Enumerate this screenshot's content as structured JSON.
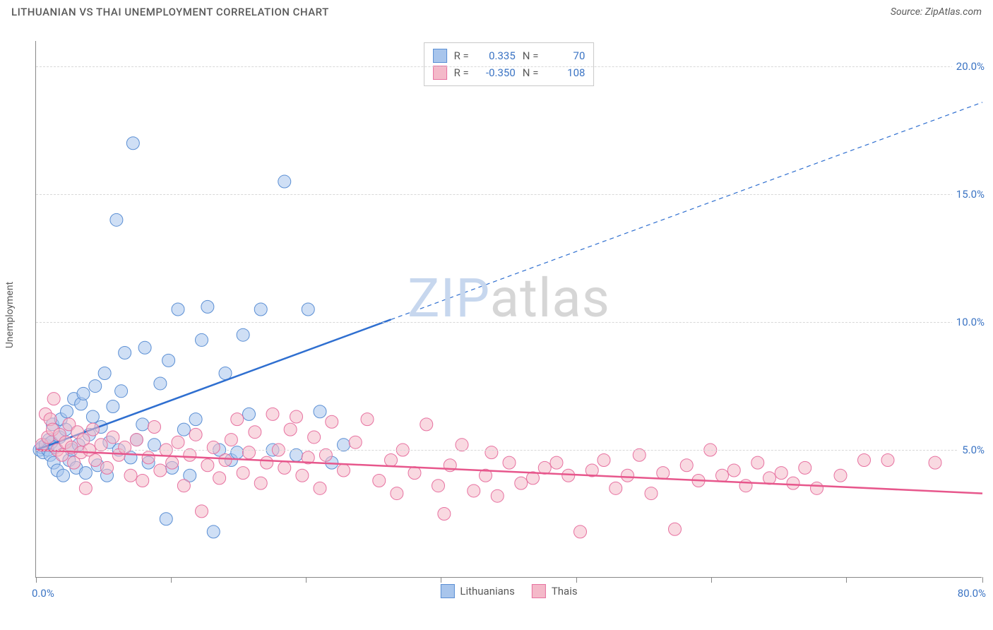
{
  "header": {
    "title": "LITHUANIAN VS THAI UNEMPLOYMENT CORRELATION CHART",
    "source": "Source: ZipAtlas.com"
  },
  "watermark": {
    "part1": "ZIP",
    "part2": "atlas"
  },
  "chart": {
    "type": "scatter",
    "xlabel": "",
    "ylabel": "Unemployment",
    "xlim": [
      0,
      80
    ],
    "ylim": [
      0,
      21
    ],
    "xtick_positions": [
      0,
      11.4,
      22.8,
      34.2,
      45.7,
      57.1,
      68.5,
      80
    ],
    "xtick_labels": {
      "min": "0.0%",
      "max": "80.0%"
    },
    "ytick_positions": [
      5,
      10,
      15,
      20
    ],
    "ytick_labels": [
      "5.0%",
      "10.0%",
      "15.0%",
      "20.0%"
    ],
    "grid_color": "#d8d8d8",
    "axis_color": "#888888",
    "background_color": "#ffffff",
    "marker_radius": 9,
    "marker_opacity": 0.55,
    "series": [
      {
        "name": "Lithuanians",
        "color_fill": "#a8c5ec",
        "color_stroke": "#5b8fd4",
        "R": "0.335",
        "N": "70",
        "trend": {
          "color": "#2f6fd0",
          "width": 2.5,
          "solid_range": [
            0,
            30
          ],
          "dashed_range": [
            30,
            80
          ],
          "y_start": 5.0,
          "y_at_30": 10.1,
          "y_at_80": 18.6
        },
        "points": [
          [
            0.3,
            5.0
          ],
          [
            0.5,
            5.1
          ],
          [
            0.6,
            4.9
          ],
          [
            0.8,
            5.2
          ],
          [
            1.0,
            5.0
          ],
          [
            1.1,
            5.4
          ],
          [
            1.2,
            4.8
          ],
          [
            1.3,
            5.3
          ],
          [
            1.4,
            6.0
          ],
          [
            1.5,
            4.5
          ],
          [
            1.6,
            5.1
          ],
          [
            1.8,
            4.2
          ],
          [
            2.0,
            5.5
          ],
          [
            2.1,
            6.2
          ],
          [
            2.3,
            4.0
          ],
          [
            2.5,
            5.8
          ],
          [
            2.6,
            6.5
          ],
          [
            2.8,
            4.6
          ],
          [
            3.0,
            5.0
          ],
          [
            3.2,
            7.0
          ],
          [
            3.4,
            4.3
          ],
          [
            3.6,
            5.2
          ],
          [
            3.8,
            6.8
          ],
          [
            4.0,
            7.2
          ],
          [
            4.2,
            4.1
          ],
          [
            4.5,
            5.6
          ],
          [
            4.8,
            6.3
          ],
          [
            5.0,
            7.5
          ],
          [
            5.2,
            4.4
          ],
          [
            5.5,
            5.9
          ],
          [
            5.8,
            8.0
          ],
          [
            6.0,
            4.0
          ],
          [
            6.2,
            5.3
          ],
          [
            6.5,
            6.7
          ],
          [
            6.8,
            14.0
          ],
          [
            7.0,
            5.0
          ],
          [
            7.2,
            7.3
          ],
          [
            7.5,
            8.8
          ],
          [
            8.0,
            4.7
          ],
          [
            8.2,
            17.0
          ],
          [
            8.5,
            5.4
          ],
          [
            9.0,
            6.0
          ],
          [
            9.2,
            9.0
          ],
          [
            9.5,
            4.5
          ],
          [
            10.0,
            5.2
          ],
          [
            10.5,
            7.6
          ],
          [
            11.0,
            2.3
          ],
          [
            11.2,
            8.5
          ],
          [
            11.5,
            4.3
          ],
          [
            12.0,
            10.5
          ],
          [
            12.5,
            5.8
          ],
          [
            13.0,
            4.0
          ],
          [
            13.5,
            6.2
          ],
          [
            14.0,
            9.3
          ],
          [
            14.5,
            10.6
          ],
          [
            15.0,
            1.8
          ],
          [
            15.5,
            5.0
          ],
          [
            16.0,
            8.0
          ],
          [
            16.5,
            4.6
          ],
          [
            17.0,
            4.9
          ],
          [
            17.5,
            9.5
          ],
          [
            18.0,
            6.4
          ],
          [
            19.0,
            10.5
          ],
          [
            20.0,
            5.0
          ],
          [
            21.0,
            15.5
          ],
          [
            22.0,
            4.8
          ],
          [
            23.0,
            10.5
          ],
          [
            24.0,
            6.5
          ],
          [
            25.0,
            4.5
          ],
          [
            26.0,
            5.2
          ]
        ]
      },
      {
        "name": "Thais",
        "color_fill": "#f4b9c9",
        "color_stroke": "#e771a0",
        "R": "-0.350",
        "N": "108",
        "trend": {
          "color": "#e7578c",
          "width": 2.5,
          "solid_range": [
            0,
            80
          ],
          "y_start": 5.0,
          "y_at_80": 3.3
        },
        "points": [
          [
            0.5,
            5.2
          ],
          [
            0.8,
            6.4
          ],
          [
            1.0,
            5.5
          ],
          [
            1.2,
            6.2
          ],
          [
            1.4,
            5.8
          ],
          [
            1.5,
            7.0
          ],
          [
            1.8,
            5.0
          ],
          [
            2.0,
            5.6
          ],
          [
            2.2,
            4.8
          ],
          [
            2.5,
            5.3
          ],
          [
            2.8,
            6.0
          ],
          [
            3.0,
            5.1
          ],
          [
            3.2,
            4.5
          ],
          [
            3.5,
            5.7
          ],
          [
            3.8,
            4.9
          ],
          [
            4.0,
            5.4
          ],
          [
            4.2,
            3.5
          ],
          [
            4.5,
            5.0
          ],
          [
            4.8,
            5.8
          ],
          [
            5.0,
            4.6
          ],
          [
            5.5,
            5.2
          ],
          [
            6.0,
            4.3
          ],
          [
            6.5,
            5.5
          ],
          [
            7.0,
            4.8
          ],
          [
            7.5,
            5.1
          ],
          [
            8.0,
            4.0
          ],
          [
            8.5,
            5.4
          ],
          [
            9.0,
            3.8
          ],
          [
            9.5,
            4.7
          ],
          [
            10.0,
            5.9
          ],
          [
            10.5,
            4.2
          ],
          [
            11.0,
            5.0
          ],
          [
            11.5,
            4.5
          ],
          [
            12.0,
            5.3
          ],
          [
            12.5,
            3.6
          ],
          [
            13.0,
            4.8
          ],
          [
            13.5,
            5.6
          ],
          [
            14.0,
            2.6
          ],
          [
            14.5,
            4.4
          ],
          [
            15.0,
            5.1
          ],
          [
            15.5,
            3.9
          ],
          [
            16.0,
            4.6
          ],
          [
            16.5,
            5.4
          ],
          [
            17.0,
            6.2
          ],
          [
            17.5,
            4.1
          ],
          [
            18.0,
            4.9
          ],
          [
            18.5,
            5.7
          ],
          [
            19.0,
            3.7
          ],
          [
            19.5,
            4.5
          ],
          [
            20.0,
            6.4
          ],
          [
            20.5,
            5.0
          ],
          [
            21.0,
            4.3
          ],
          [
            21.5,
            5.8
          ],
          [
            22.0,
            6.3
          ],
          [
            22.5,
            4.0
          ],
          [
            23.0,
            4.7
          ],
          [
            23.5,
            5.5
          ],
          [
            24.0,
            3.5
          ],
          [
            24.5,
            4.8
          ],
          [
            25.0,
            6.1
          ],
          [
            26.0,
            4.2
          ],
          [
            27.0,
            5.3
          ],
          [
            28.0,
            6.2
          ],
          [
            29.0,
            3.8
          ],
          [
            30.0,
            4.6
          ],
          [
            30.5,
            3.3
          ],
          [
            31.0,
            5.0
          ],
          [
            32.0,
            4.1
          ],
          [
            33.0,
            6.0
          ],
          [
            34.0,
            3.6
          ],
          [
            34.5,
            2.5
          ],
          [
            35.0,
            4.4
          ],
          [
            36.0,
            5.2
          ],
          [
            37.0,
            3.4
          ],
          [
            38.0,
            4.0
          ],
          [
            38.5,
            4.9
          ],
          [
            39.0,
            3.2
          ],
          [
            40.0,
            4.5
          ],
          [
            41.0,
            3.7
          ],
          [
            42.0,
            3.9
          ],
          [
            43.0,
            4.3
          ],
          [
            44.0,
            4.5
          ],
          [
            45.0,
            4.0
          ],
          [
            46.0,
            1.8
          ],
          [
            47.0,
            4.2
          ],
          [
            48.0,
            4.6
          ],
          [
            49.0,
            3.5
          ],
          [
            50.0,
            4.0
          ],
          [
            51.0,
            4.8
          ],
          [
            52.0,
            3.3
          ],
          [
            53.0,
            4.1
          ],
          [
            54.0,
            1.9
          ],
          [
            55.0,
            4.4
          ],
          [
            56.0,
            3.8
          ],
          [
            57.0,
            5.0
          ],
          [
            58.0,
            4.0
          ],
          [
            59.0,
            4.2
          ],
          [
            60.0,
            3.6
          ],
          [
            61.0,
            4.5
          ],
          [
            62.0,
            3.9
          ],
          [
            63.0,
            4.1
          ],
          [
            64.0,
            3.7
          ],
          [
            65.0,
            4.3
          ],
          [
            66.0,
            3.5
          ],
          [
            68.0,
            4.0
          ],
          [
            70.0,
            4.6
          ],
          [
            72.0,
            4.6
          ],
          [
            76.0,
            4.5
          ]
        ]
      }
    ]
  }
}
